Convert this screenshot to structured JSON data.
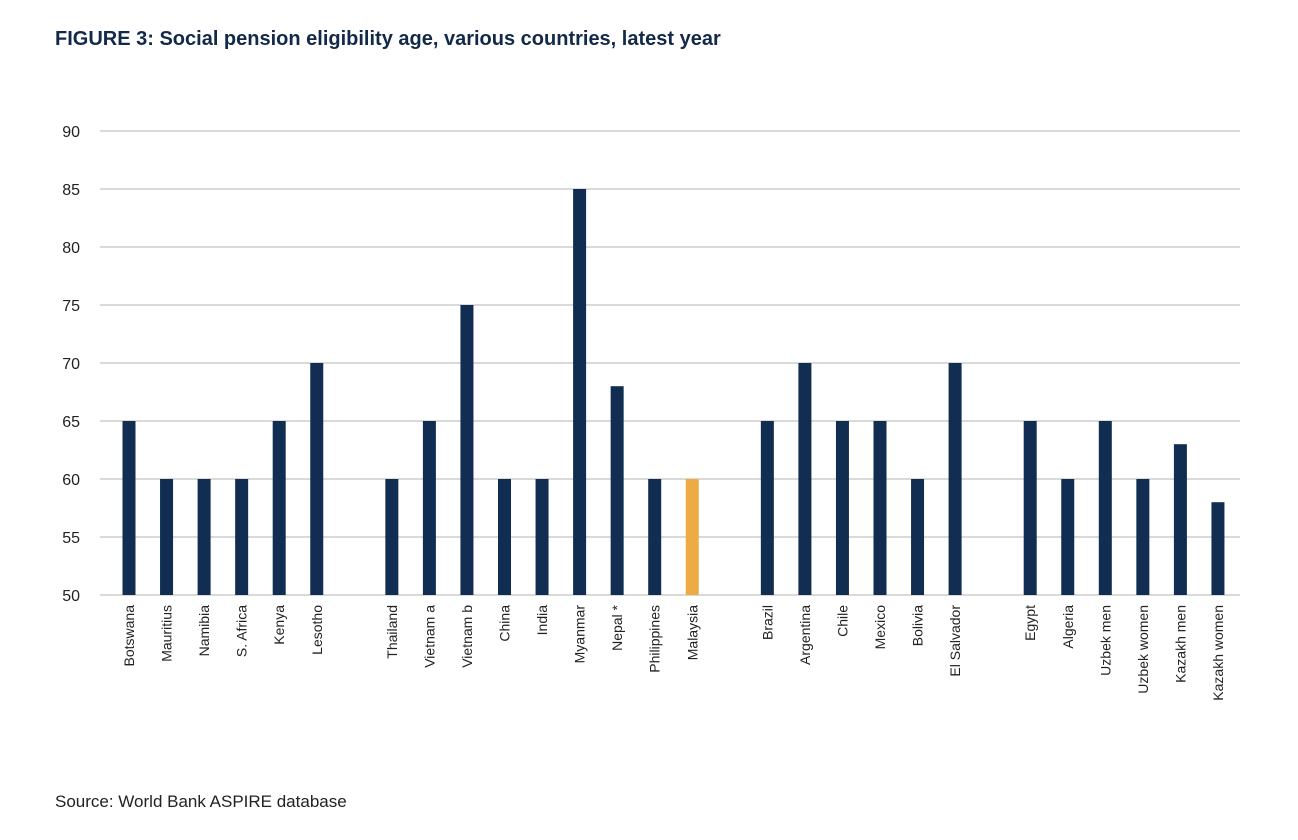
{
  "chart_data": {
    "type": "bar",
    "title": "FIGURE 3: Social pension eligibility age, various countries, latest year",
    "source": "Source: World Bank ASPIRE database",
    "xlabel": "",
    "ylabel": "",
    "ylim": [
      50,
      90
    ],
    "yticks": [
      50,
      55,
      60,
      65,
      70,
      75,
      80,
      85,
      90
    ],
    "grid": true,
    "legend": "none",
    "colors": {
      "default": "#112d52",
      "highlight": "#eeaa44",
      "grid": "#d9d9d9"
    },
    "groups": [
      {
        "categories": [
          "Botswana",
          "Mauritius",
          "Namibia",
          "S. Africa",
          "Kenya",
          "Lesotho"
        ],
        "values": [
          65,
          60,
          60,
          60,
          65,
          70
        ]
      },
      {
        "categories": [
          "Thailand",
          "Vietnam a",
          "Vietnam b",
          "China",
          "India",
          "Myanmar",
          "Nepal *",
          "Philippines",
          "Malaysia"
        ],
        "values": [
          60,
          65,
          75,
          60,
          60,
          85,
          68,
          60,
          60
        ]
      },
      {
        "categories": [
          "Brazil",
          "Argentina",
          "Chile",
          "Mexico",
          "Bolivia",
          "El Salvador"
        ],
        "values": [
          65,
          70,
          65,
          65,
          60,
          70
        ]
      },
      {
        "categories": [
          "Egypt",
          "Algeria",
          "Uzbek men",
          "Uzbek women",
          "Kazakh men",
          "Kazakh women"
        ],
        "values": [
          65,
          60,
          65,
          60,
          63,
          58
        ]
      }
    ],
    "highlighted": [
      "Malaysia"
    ]
  }
}
